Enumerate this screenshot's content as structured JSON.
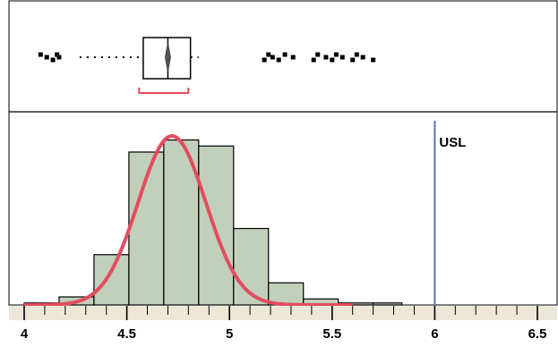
{
  "chart_data": {
    "type": "histogram",
    "title": "",
    "xlabel": "",
    "ylabel": "",
    "xlim": [
      3.98,
      6.55
    ],
    "x_ticks": [
      4,
      4.5,
      5,
      5.5,
      6,
      6.5
    ],
    "x_tick_labels": [
      "4",
      "4.5",
      "5",
      "5.5",
      "6",
      "6.5"
    ],
    "minor_tick_step": 0.1,
    "bin_edges": [
      4.0,
      4.17,
      4.34,
      4.51,
      4.68,
      4.85,
      5.02,
      5.19,
      5.36,
      5.53,
      5.7,
      5.84
    ],
    "counts": [
      1,
      4,
      25,
      76,
      82,
      79,
      38,
      11,
      3,
      1,
      1
    ],
    "ylim": [
      0,
      92
    ],
    "normal_fit": {
      "mean": 4.72,
      "sd": 0.165,
      "peak": 84
    },
    "spec_limits": [
      {
        "label": "USL",
        "value": 6.0
      }
    ],
    "box_plot": {
      "min": 4.27,
      "q1": 4.58,
      "median": 4.7,
      "q3": 4.81,
      "whisker_low": 4.27,
      "whisker_high": 4.85,
      "outliers": [
        4.08,
        4.11,
        4.14,
        4.16,
        4.17,
        5.17,
        5.19,
        5.21,
        5.24,
        5.27,
        5.31,
        5.41,
        5.43,
        5.47,
        5.5,
        5.52,
        5.55,
        5.6,
        5.62,
        5.65,
        5.7
      ],
      "shortest_half": [
        4.56,
        4.8
      ]
    },
    "grid": false,
    "legend": "none",
    "colors": {
      "bar_fill": "#c2cfba",
      "bar_stroke": "#000000",
      "fit_curve": "#e14d5f",
      "usl_line": "#4a74c9",
      "axis_band": "#ece7d7",
      "box_fill": "#ffffff",
      "shortest_half": "#e14d5f"
    }
  }
}
